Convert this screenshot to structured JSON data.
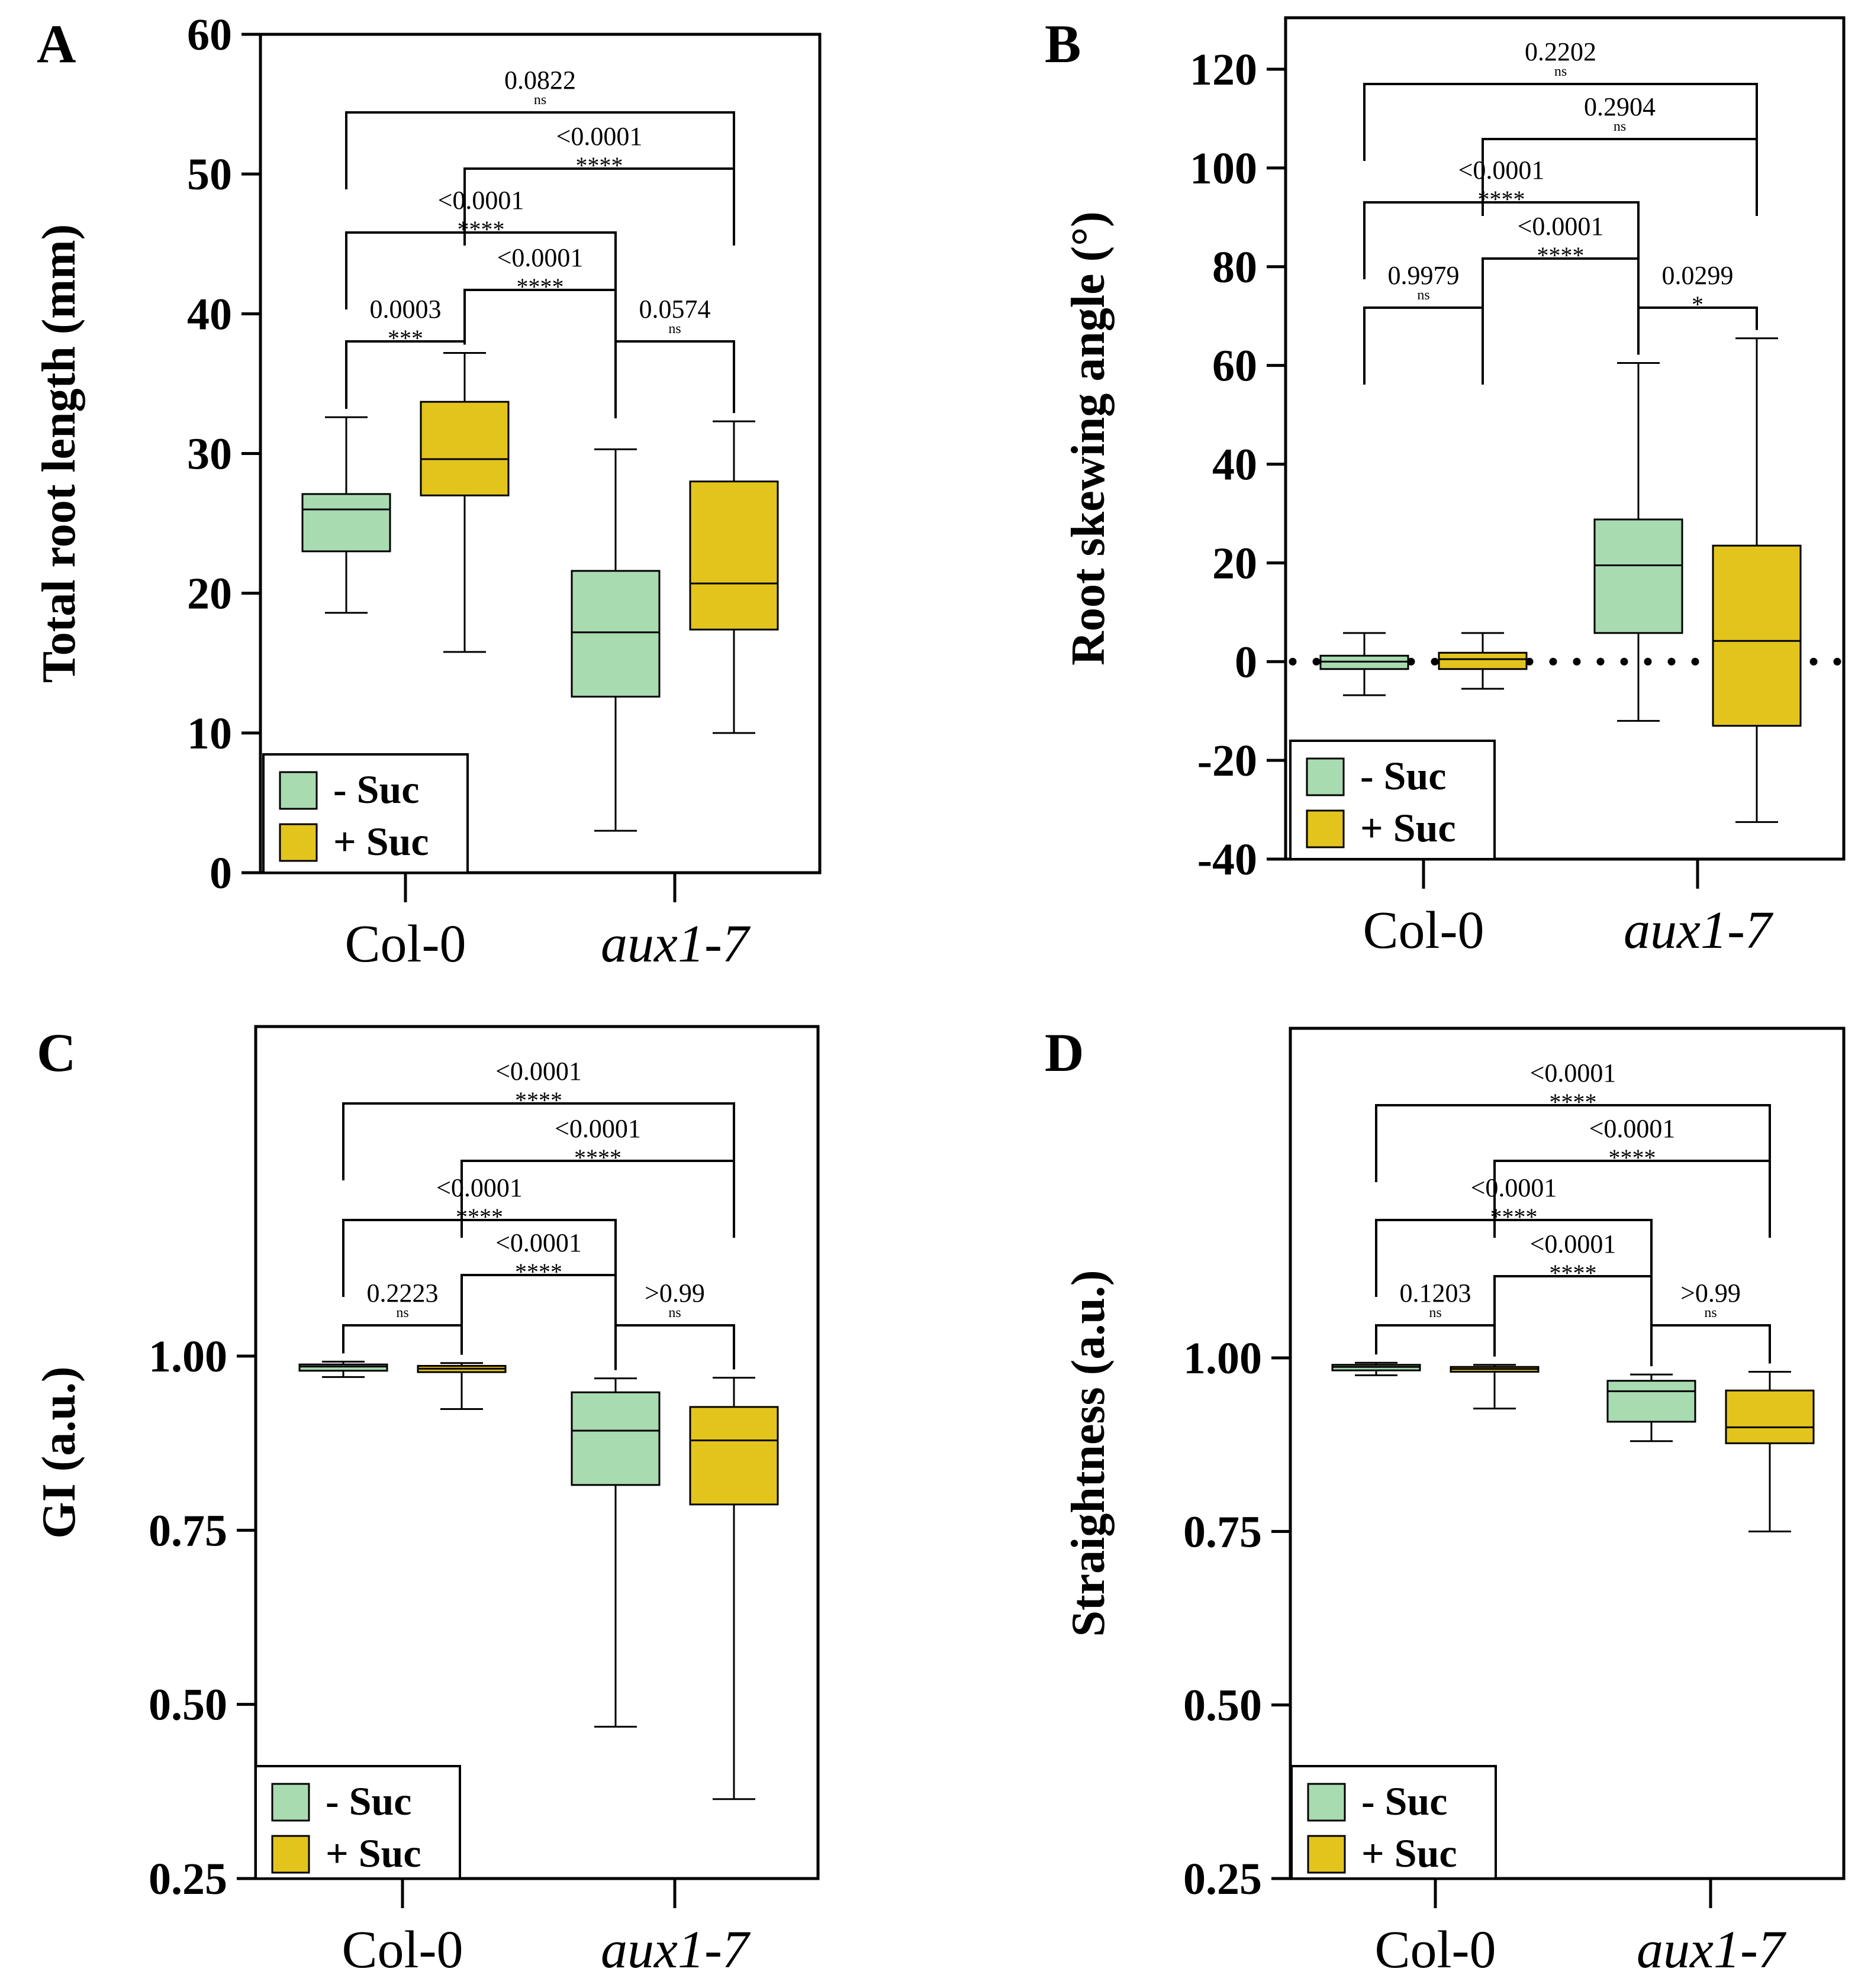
{
  "colors": {
    "no_suc": "#a8dbb0",
    "suc": "#e3c41d",
    "line": "#000000"
  },
  "categories": [
    "Col-0",
    "aux1-7"
  ],
  "legend": [
    "- Suc",
    "+ Suc"
  ],
  "chart_data": [
    {
      "panel": "A",
      "type": "box",
      "ylabel": "Total root length (mm)",
      "ylim": [
        0,
        60
      ],
      "yticks": [
        0,
        10,
        20,
        30,
        40,
        50,
        60
      ],
      "legend_position": "bottom-left",
      "categories": [
        "Col-0",
        "aux1-7"
      ],
      "series": [
        {
          "name": "- Suc",
          "boxes": [
            {
              "min": 18.6,
              "q1": 23.0,
              "median": 26.0,
              "q3": 27.1,
              "max": 32.6
            },
            {
              "min": 3.0,
              "q1": 12.6,
              "median": 17.2,
              "q3": 21.6,
              "max": 30.3
            }
          ]
        },
        {
          "name": "+ Suc",
          "boxes": [
            {
              "min": 15.8,
              "q1": 27.0,
              "median": 29.6,
              "q3": 33.7,
              "max": 37.2
            },
            {
              "min": 10.0,
              "q1": 17.4,
              "median": 20.7,
              "q3": 28.0,
              "max": 32.3
            }
          ]
        }
      ],
      "comparisons": [
        {
          "a": 0,
          "b": 3,
          "p": "0.0822",
          "sig": "ns"
        },
        {
          "a": 1,
          "b": 3,
          "p": "<0.0001",
          "sig": "****"
        },
        {
          "a": 0,
          "b": 2,
          "p": "<0.0001",
          "sig": "****"
        },
        {
          "a": 1,
          "b": 2,
          "p": "<0.0001",
          "sig": "****"
        },
        {
          "a": 0,
          "b": 1,
          "p": "0.0003",
          "sig": "***"
        },
        {
          "a": 2,
          "b": 3,
          "p": "0.0574",
          "sig": "ns"
        }
      ]
    },
    {
      "panel": "B",
      "type": "box",
      "ylabel": "Root skewing angle (°)",
      "ylim": [
        -40,
        120
      ],
      "yticks": [
        -40,
        -20,
        0,
        20,
        40,
        60,
        80,
        100,
        120
      ],
      "zero_line": true,
      "legend_position": "bottom-left",
      "categories": [
        "Col-0",
        "aux1-7"
      ],
      "series": [
        {
          "name": "- Suc",
          "boxes": [
            {
              "min": -6.8,
              "q1": -1.5,
              "median": 0.0,
              "q3": 1.2,
              "max": 5.8
            },
            {
              "min": -12.0,
              "q1": 5.8,
              "median": 19.5,
              "q3": 28.8,
              "max": 60.5
            }
          ]
        },
        {
          "name": "+ Suc",
          "boxes": [
            {
              "min": -5.5,
              "q1": -1.5,
              "median": 0.5,
              "q3": 1.8,
              "max": 5.8
            },
            {
              "min": -32.5,
              "q1": -13.0,
              "median": 4.2,
              "q3": 23.5,
              "max": 65.5
            }
          ]
        }
      ],
      "comparisons": [
        {
          "a": 0,
          "b": 3,
          "p": "0.2202",
          "sig": "ns"
        },
        {
          "a": 1,
          "b": 3,
          "p": "0.2904",
          "sig": "ns"
        },
        {
          "a": 0,
          "b": 2,
          "p": "<0.0001",
          "sig": "****"
        },
        {
          "a": 1,
          "b": 2,
          "p": "<0.0001",
          "sig": "****"
        },
        {
          "a": 0,
          "b": 1,
          "p": "0.9979",
          "sig": "ns"
        },
        {
          "a": 2,
          "b": 3,
          "p": "0.0299",
          "sig": "*"
        }
      ]
    },
    {
      "panel": "C",
      "type": "box",
      "ylabel": "GI (a.u.)",
      "ylim": [
        0.25,
        1.0
      ],
      "yticks": [
        0.25,
        0.5,
        0.75,
        1.0
      ],
      "ytick_labels": [
        "0.25",
        "0.50",
        "0.75",
        "1.00"
      ],
      "legend_position": "bottom-left",
      "categories": [
        "Col-0",
        "aux1-7"
      ],
      "series": [
        {
          "name": "- Suc",
          "boxes": [
            {
              "min": 0.97,
              "q1": 0.979,
              "median": 0.985,
              "q3": 0.988,
              "max": 0.992
            },
            {
              "min": 0.468,
              "q1": 0.815,
              "median": 0.893,
              "q3": 0.948,
              "max": 0.968
            }
          ]
        },
        {
          "name": "+ Suc",
          "boxes": [
            {
              "min": 0.924,
              "q1": 0.977,
              "median": 0.982,
              "q3": 0.986,
              "max": 0.99
            },
            {
              "min": 0.364,
              "q1": 0.787,
              "median": 0.879,
              "q3": 0.927,
              "max": 0.969
            }
          ]
        }
      ],
      "comparisons": [
        {
          "a": 0,
          "b": 3,
          "p": "<0.0001",
          "sig": "****"
        },
        {
          "a": 1,
          "b": 3,
          "p": "<0.0001",
          "sig": "****"
        },
        {
          "a": 0,
          "b": 2,
          "p": "<0.0001",
          "sig": "****"
        },
        {
          "a": 1,
          "b": 2,
          "p": "<0.0001",
          "sig": "****"
        },
        {
          "a": 0,
          "b": 1,
          "p": "0.2223",
          "sig": "ns"
        },
        {
          "a": 2,
          "b": 3,
          "p": ">0.99",
          "sig": "ns"
        }
      ]
    },
    {
      "panel": "D",
      "type": "box",
      "ylabel": "Straightness (a.u.)",
      "ylim": [
        0.25,
        1.0
      ],
      "yticks": [
        0.25,
        0.5,
        0.75,
        1.0
      ],
      "ytick_labels": [
        "0.25",
        "0.50",
        "0.75",
        "1.00"
      ],
      "legend_position": "bottom-left",
      "categories": [
        "Col-0",
        "aux1-7"
      ],
      "series": [
        {
          "name": "- Suc",
          "boxes": [
            {
              "min": 0.975,
              "q1": 0.982,
              "median": 0.987,
              "q3": 0.99,
              "max": 0.993
            },
            {
              "min": 0.88,
              "q1": 0.908,
              "median": 0.952,
              "q3": 0.967,
              "max": 0.976
            }
          ]
        },
        {
          "name": "+ Suc",
          "boxes": [
            {
              "min": 0.927,
              "q1": 0.98,
              "median": 0.984,
              "q3": 0.987,
              "max": 0.99
            },
            {
              "min": 0.75,
              "q1": 0.877,
              "median": 0.9,
              "q3": 0.953,
              "max": 0.98
            }
          ]
        }
      ],
      "comparisons": [
        {
          "a": 0,
          "b": 3,
          "p": "<0.0001",
          "sig": "****"
        },
        {
          "a": 1,
          "b": 3,
          "p": "<0.0001",
          "sig": "****"
        },
        {
          "a": 0,
          "b": 2,
          "p": "<0.0001",
          "sig": "****"
        },
        {
          "a": 1,
          "b": 2,
          "p": "<0.0001",
          "sig": "****"
        },
        {
          "a": 0,
          "b": 1,
          "p": "0.1203",
          "sig": "ns"
        },
        {
          "a": 2,
          "b": 3,
          "p": ">0.99",
          "sig": "ns"
        }
      ]
    }
  ]
}
